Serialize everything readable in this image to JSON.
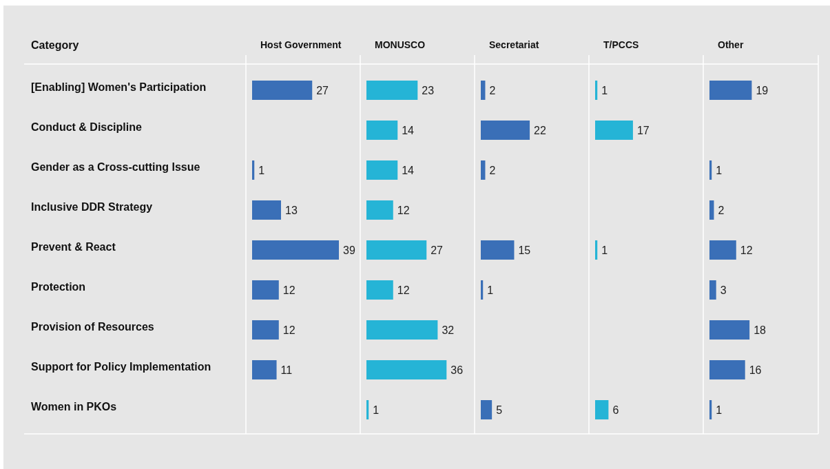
{
  "chart_data": [
    {
      "type": "bar",
      "orientation": "horizontal",
      "title": "Host Government",
      "ylabel": "Category",
      "tick_labels": "y",
      "data_labels": true,
      "color": "#3a6fb7",
      "categories": [
        "[Enabling] Women's Participation",
        "Conduct & Discipline",
        "Gender as a Cross-cutting Issue",
        "Inclusive DDR Strategy",
        "Prevent & React",
        "Protection",
        "Provision of Resources",
        "Support for Policy Implementation",
        "Women in PKOs"
      ],
      "values": [
        27,
        null,
        1,
        13,
        39,
        12,
        12,
        11,
        null
      ]
    },
    {
      "type": "bar",
      "orientation": "horizontal",
      "title": "MONUSCO",
      "tick_labels": false,
      "data_labels": true,
      "color": "#25b4d6",
      "categories": [
        null,
        null,
        null,
        null,
        null,
        null,
        null,
        null,
        null
      ],
      "values": [
        23,
        14,
        14,
        12,
        27,
        12,
        32,
        36,
        1
      ]
    },
    {
      "type": "bar",
      "orientation": "horizontal",
      "title": "Secretariat",
      "tick_labels": false,
      "data_labels": true,
      "color": "#3a6fb7",
      "categories": [
        null,
        null,
        null,
        null,
        null,
        null,
        null,
        null,
        null
      ],
      "values": [
        2,
        22,
        2,
        null,
        15,
        1,
        null,
        null,
        5
      ]
    },
    {
      "type": "bar",
      "orientation": "horizontal",
      "title": "T/PCCS",
      "tick_labels": false,
      "data_labels": true,
      "color": "#25b4d6",
      "categories": [
        null,
        null,
        null,
        null,
        null,
        null,
        null,
        null,
        null
      ],
      "values": [
        1,
        17,
        null,
        null,
        1,
        null,
        null,
        null,
        6
      ]
    },
    {
      "type": "bar",
      "orientation": "horizontal",
      "title": "Other",
      "tick_labels": false,
      "data_labels": true,
      "color": "#3a6fb7",
      "categories": [
        null,
        null,
        null,
        null,
        null,
        null,
        null,
        null,
        null
      ],
      "values": [
        19,
        null,
        1,
        2,
        12,
        3,
        18,
        16,
        1
      ]
    }
  ]
}
